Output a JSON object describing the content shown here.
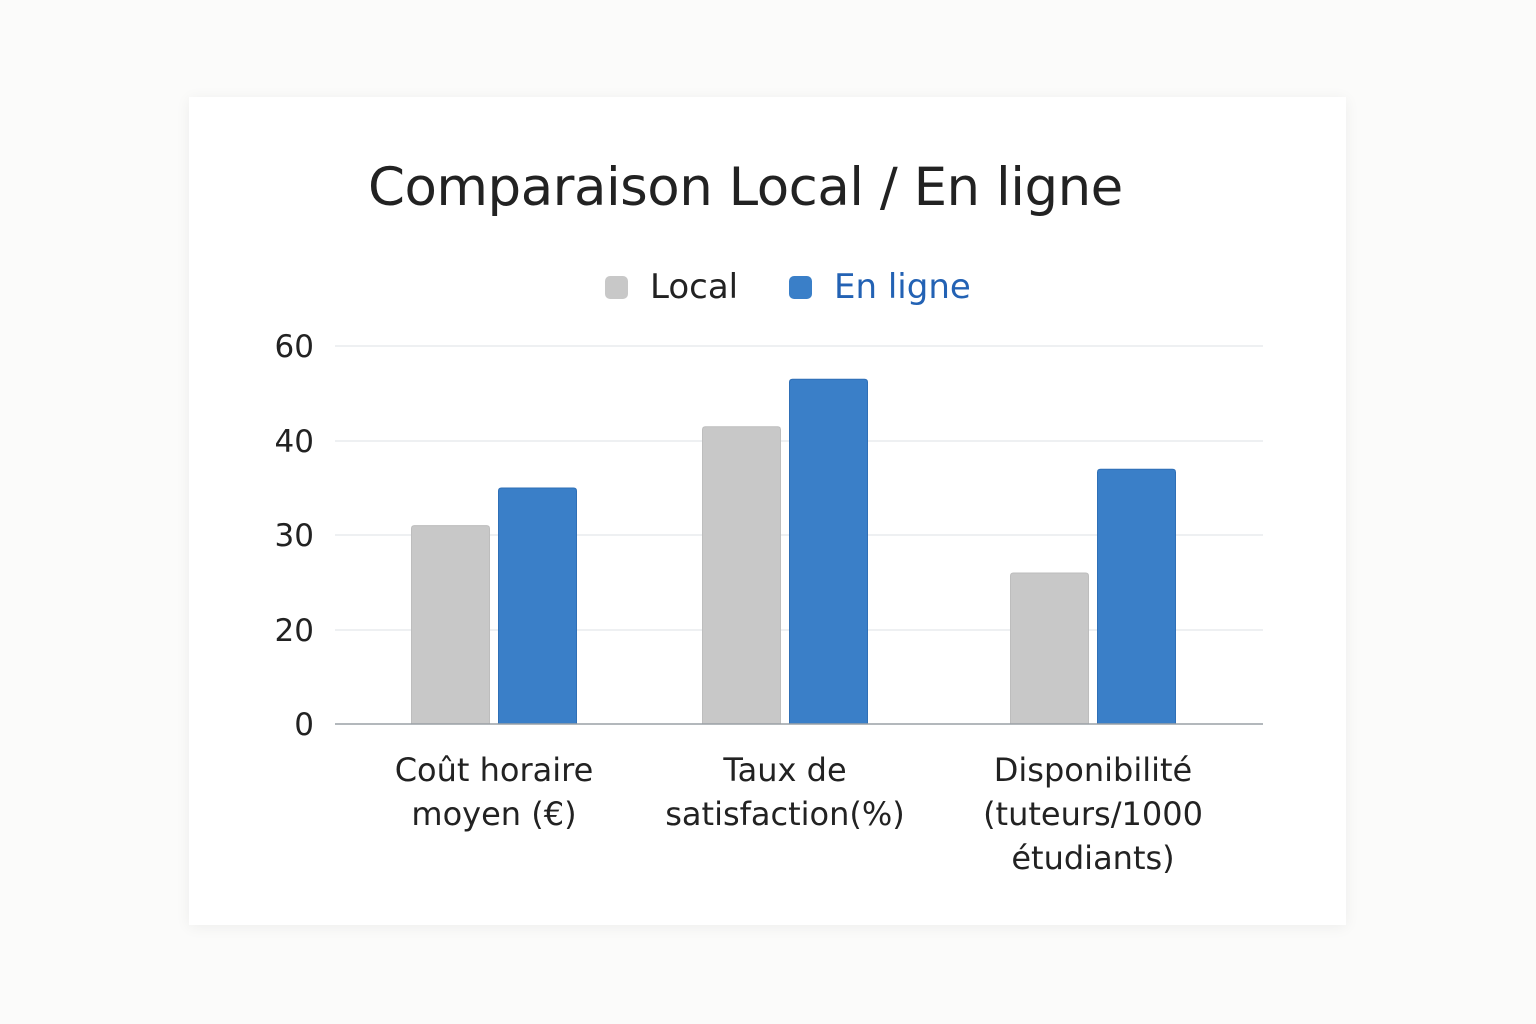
{
  "chart_data": {
    "type": "bar",
    "title": "Comparaison Local / En ligne",
    "categories": [
      "Coût horaire\nmoyen (€)",
      "Taux de\nsatisfaction(%)",
      "Disponibilité\n(tuteurs/1000\nétudiants)"
    ],
    "series": [
      {
        "name": "Local",
        "values": [
          31,
          43,
          26
        ],
        "color": "#c8c8c8"
      },
      {
        "name": "En ligne",
        "values": [
          35,
          53,
          37
        ],
        "color": "#3a7fc8"
      }
    ],
    "y_tick_labels": [
      "0",
      "20",
      "30",
      "40",
      "60"
    ],
    "xlabel": "",
    "ylabel": "",
    "grid": true,
    "legend": "top-center"
  }
}
